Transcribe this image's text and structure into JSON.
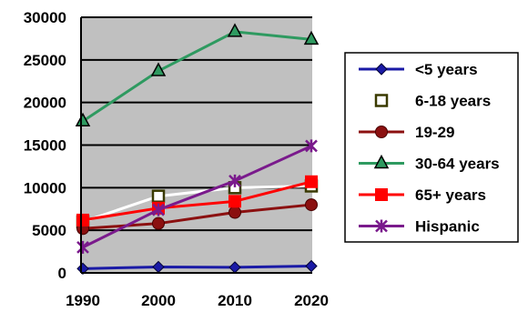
{
  "chart_data": {
    "type": "line",
    "title": "",
    "xlabel": "",
    "ylabel": "",
    "x": [
      "1990",
      "2000",
      "2010",
      "2020"
    ],
    "ylim": [
      0,
      30000
    ],
    "yticks": [
      "0",
      "5000",
      "10000",
      "15000",
      "20000",
      "25000",
      "30000"
    ],
    "grid": "horizontal",
    "plot_background": "#c0c0c0",
    "legend_position": "right",
    "series": [
      {
        "name": "<5 years",
        "values": [
          500,
          700,
          650,
          800
        ],
        "color": "#1a1aa6",
        "marker": "diamond"
      },
      {
        "name": "6-18 years",
        "values": [
          6000,
          9000,
          10000,
          10200
        ],
        "color": "#ffffff",
        "marker_color": "#3a3a00",
        "marker": "hollow-square"
      },
      {
        "name": "19-29",
        "values": [
          5200,
          5800,
          7100,
          8000
        ],
        "color": "#8b1010",
        "marker": "circle"
      },
      {
        "name": "30-64 years",
        "values": [
          17800,
          23700,
          28300,
          27400
        ],
        "color": "#2e9a60",
        "marker": "triangle"
      },
      {
        "name": "65+ years",
        "values": [
          6200,
          7600,
          8400,
          10700
        ],
        "color": "#ff0000",
        "marker": "square"
      },
      {
        "name": "Hispanic",
        "values": [
          3000,
          7400,
          10800,
          14900
        ],
        "color": "#7a1a8c",
        "marker": "star"
      }
    ]
  }
}
